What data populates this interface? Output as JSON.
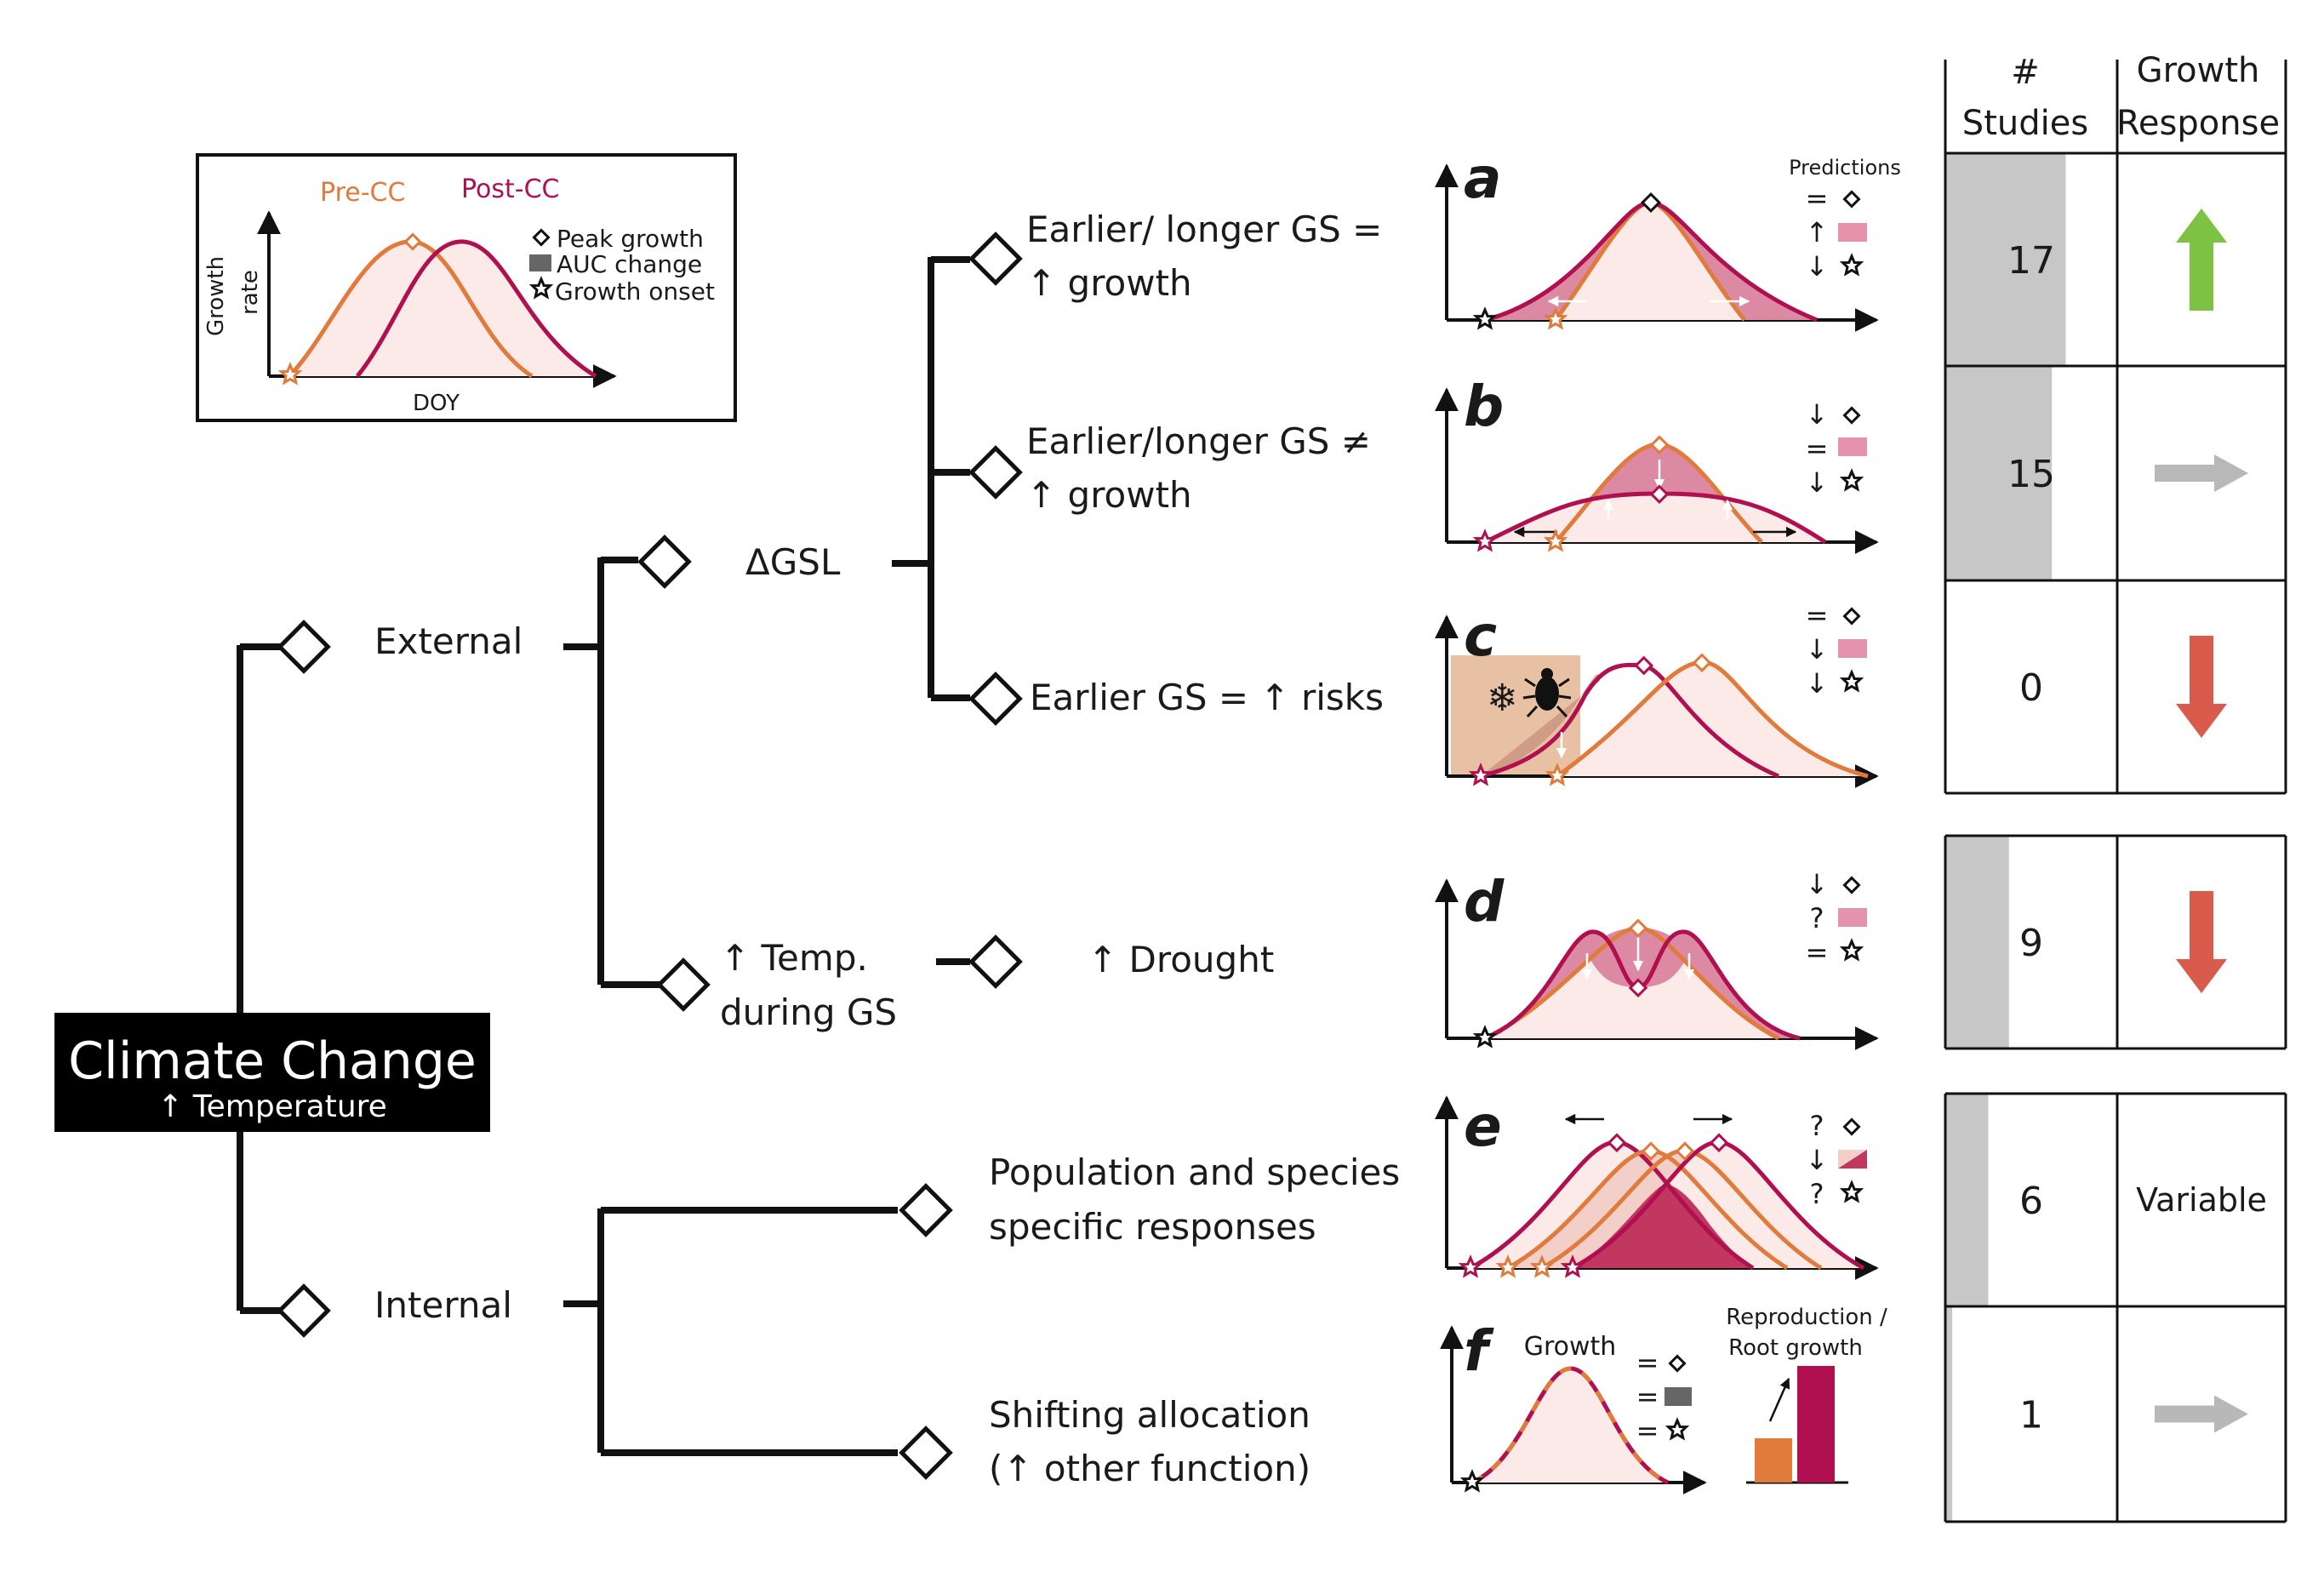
{
  "colors": {
    "pre": "#e07b3c",
    "post": "#b0104f",
    "fill_light": "#fbeae8",
    "fill_mid": "#dc8aa3",
    "fill_dark": "#c2375f",
    "risk_box": "#e8c1a4",
    "up_arrow": "#7dc242",
    "down_arrow": "#d95b4b",
    "flat_arrow": "#b8b8b8",
    "bar_gray": "#c7c7c7"
  },
  "legend": {
    "pre_label": "Pre-CC",
    "post_label": "Post-CC",
    "y_label_1": "Growth",
    "y_label_2": "rate",
    "x_label": "DOY",
    "peak": "Peak growth",
    "auc": "AUC change",
    "onset": "Growth onset"
  },
  "tree": {
    "root_title": "Climate Change",
    "root_sub": "↑ Temperature",
    "external": "External",
    "internal": "Internal",
    "dgsl": "ΔGSL",
    "temp_1": "↑ Temp.",
    "temp_2": "during GS",
    "drought": "↑ Drought",
    "leaf_a1": "Earlier/ longer GS =",
    "leaf_a2": "↑ growth",
    "leaf_b1": "Earlier/longer GS  ≠",
    "leaf_b2": "↑ growth",
    "leaf_c": "Earlier GS = ↑ risks",
    "leaf_e1": "Population and species",
    "leaf_e2": "specific responses",
    "leaf_f1": "Shifting allocation",
    "leaf_f2": "(↑ other function)"
  },
  "panels": {
    "predictions": "Predictions",
    "a": {
      "letter": "a",
      "peak": "=",
      "auc": "↑",
      "onset": "↓"
    },
    "b": {
      "letter": "b",
      "peak": "↓",
      "auc": "=",
      "onset": "↓"
    },
    "c": {
      "letter": "c",
      "peak": "=",
      "auc": "↓",
      "onset": "↓"
    },
    "d": {
      "letter": "d",
      "peak": "↓",
      "auc": "?",
      "onset": "="
    },
    "e": {
      "letter": "e",
      "peak": "?",
      "auc": "↓",
      "onset": "?"
    },
    "f": {
      "letter": "f",
      "peak": "=",
      "auc": "=",
      "onset": "=",
      "growth_label": "Growth",
      "repro_1": "Reproduction /",
      "repro_2": "Root growth"
    }
  },
  "table": {
    "header_studies_1": "#",
    "header_studies_2": "Studies",
    "header_response_1": "Growth",
    "header_response_2": "Response",
    "rows": [
      {
        "count": "17",
        "fraction": 0.7,
        "response": "up"
      },
      {
        "count": "15",
        "fraction": 0.62,
        "response": "flat"
      },
      {
        "count": "0",
        "fraction": 0.0,
        "response": "down"
      },
      {
        "count": "9",
        "fraction": 0.37,
        "response": "down"
      },
      {
        "count": "6",
        "fraction": 0.25,
        "response": "Variable"
      },
      {
        "count": "1",
        "fraction": 0.04,
        "response": "flat"
      }
    ]
  }
}
